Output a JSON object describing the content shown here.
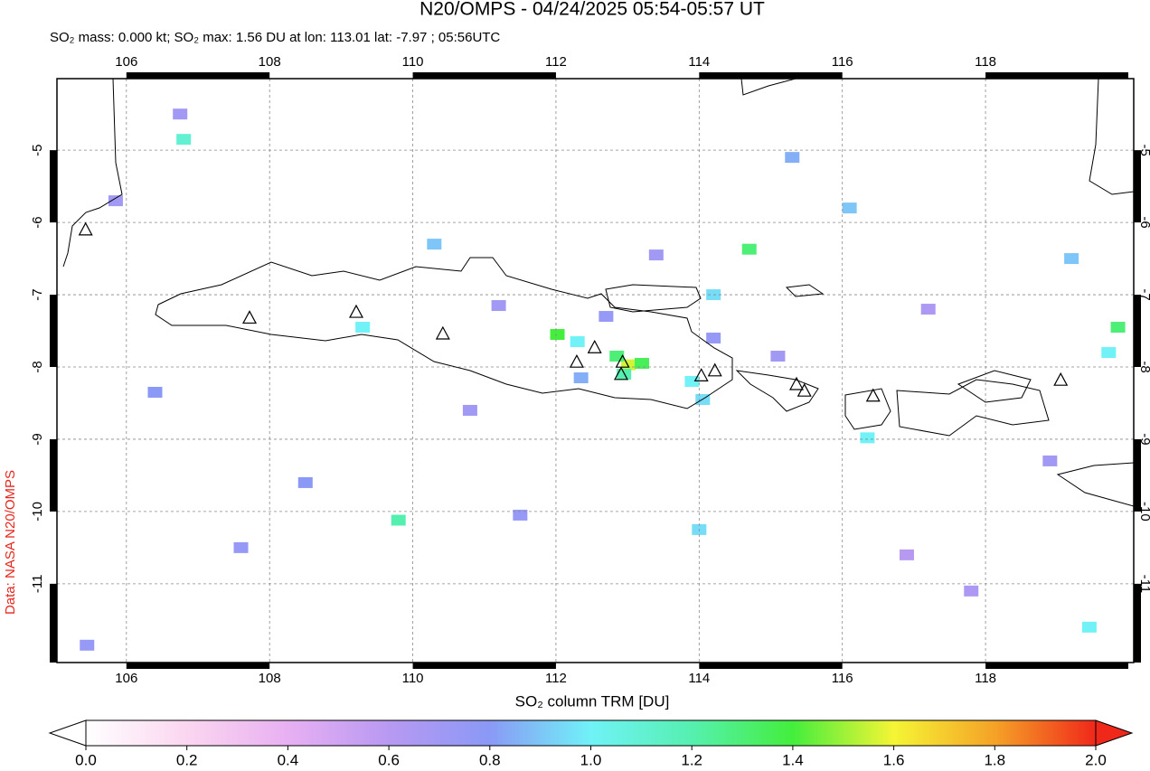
{
  "title": "N20/OMPS - 04/24/2025 05:54-05:57 UT",
  "subtitle": "SO₂ mass: 0.000 kt; SO₂ max: 1.56 DU at lon: 113.01 lat: -7.97 ; 05:56UTC",
  "credit": "Data: NASA N20/OMPS",
  "map": {
    "xlim": [
      105.03,
      120.07
    ],
    "ylim": [
      -12.09,
      -4.01
    ],
    "xticks": [
      106,
      108,
      110,
      112,
      114,
      116,
      118
    ],
    "yticks": [
      -5,
      -6,
      -7,
      -8,
      -9,
      -10,
      -11
    ],
    "grid": true,
    "pixels": [
      [
        112.02,
        -7.55,
        1.4
      ],
      [
        113.01,
        -7.97,
        1.56
      ],
      [
        112.85,
        -7.85,
        1.3
      ],
      [
        112.3,
        -7.65,
        1.0
      ],
      [
        112.35,
        -8.15,
        0.85
      ],
      [
        113.9,
        -8.2,
        1.0
      ],
      [
        112.95,
        -8.1,
        1.2
      ],
      [
        113.2,
        -7.95,
        1.35
      ],
      [
        109.8,
        -10.12,
        1.2
      ],
      [
        106.8,
        -4.85,
        1.1
      ],
      [
        114.7,
        -6.37,
        1.3
      ],
      [
        119.85,
        -7.45,
        1.3
      ],
      [
        119.72,
        -7.8,
        1.0
      ],
      [
        119.45,
        -11.6,
        1.0
      ],
      [
        105.45,
        -11.85,
        0.75
      ],
      [
        116.35,
        -8.98,
        1.0
      ],
      [
        119.2,
        -6.5,
        0.9
      ],
      [
        114.05,
        -8.45,
        0.95
      ],
      [
        114.0,
        -10.25,
        0.95
      ],
      [
        110.3,
        -6.3,
        0.9
      ],
      [
        106.75,
        -4.5,
        0.7
      ],
      [
        105.85,
        -5.7,
        0.7
      ],
      [
        114.2,
        -7.6,
        0.75
      ],
      [
        109.3,
        -7.45,
        1.0
      ],
      [
        111.2,
        -7.15,
        0.7
      ],
      [
        112.7,
        -7.3,
        0.75
      ],
      [
        115.1,
        -7.85,
        0.7
      ],
      [
        115.3,
        -5.1,
        0.85
      ],
      [
        116.1,
        -5.8,
        0.9
      ],
      [
        114.2,
        -7.0,
        0.95
      ],
      [
        111.5,
        -10.05,
        0.75
      ],
      [
        107.6,
        -10.5,
        0.75
      ],
      [
        110.8,
        -8.6,
        0.7
      ],
      [
        113.4,
        -6.45,
        0.7
      ],
      [
        117.2,
        -7.2,
        0.65
      ],
      [
        118.9,
        -9.3,
        0.7
      ],
      [
        106.4,
        -8.35,
        0.8
      ],
      [
        108.5,
        -9.6,
        0.8
      ],
      [
        117.8,
        -11.1,
        0.65
      ],
      [
        116.9,
        -10.6,
        0.6
      ]
    ],
    "volcanoes": [
      [
        107.72,
        -7.33
      ],
      [
        109.21,
        -7.25
      ],
      [
        110.42,
        -7.55
      ],
      [
        112.29,
        -7.94
      ],
      [
        112.54,
        -7.74
      ],
      [
        112.93,
        -7.94
      ],
      [
        112.91,
        -8.11
      ],
      [
        114.03,
        -8.13
      ],
      [
        114.22,
        -8.06
      ],
      [
        115.36,
        -8.25
      ],
      [
        115.47,
        -8.34
      ],
      [
        116.43,
        -8.41
      ],
      [
        119.05,
        -8.19
      ],
      [
        105.43,
        -6.11
      ]
    ]
  },
  "colorbar": {
    "label": "SO₂ column TRM [DU]",
    "lim": [
      0,
      2
    ],
    "ticks": [
      {
        "value": 0,
        "label": "0.0"
      },
      0.2,
      0.4,
      0.6,
      0.8,
      {
        "value": 1,
        "label": "1.0"
      },
      1.2,
      1.4,
      1.6,
      1.8,
      {
        "value": 2,
        "label": "2.0"
      }
    ],
    "colormap": [
      "#ffffff",
      "#fbd6f0",
      "#e8b0f2",
      "#b899f2",
      "#8a99f6",
      "#70f2f7",
      "#55f0b0",
      "#44ee3c",
      "#f5f535",
      "#f5a227",
      "#f0281a"
    ]
  }
}
